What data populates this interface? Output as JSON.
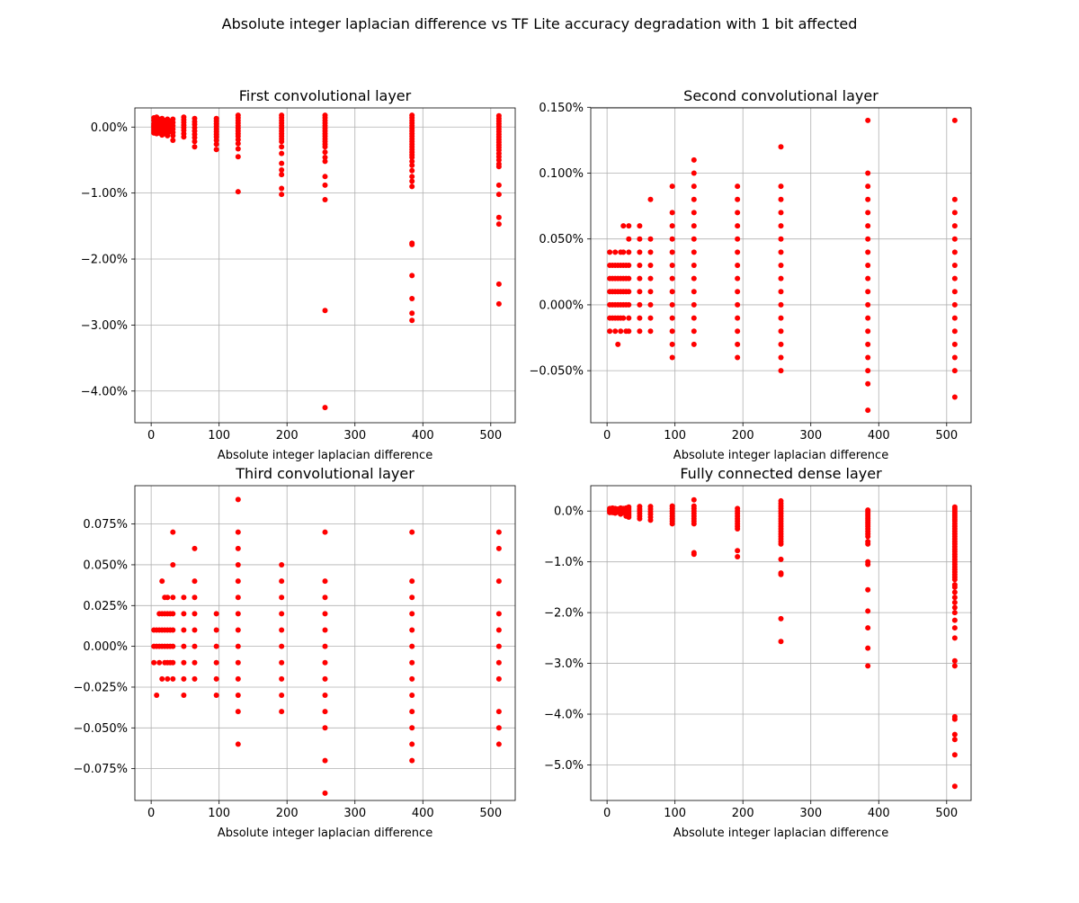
{
  "figure": {
    "suptitle": "Absolute integer laplacian difference vs TF Lite accuracy degradation with 1 bit affected"
  },
  "colors": {
    "marker": "#ff0000",
    "grid": "#b0b0b0",
    "axes": "#000000"
  },
  "chart_data": [
    {
      "type": "scatter",
      "title": "First convolutional layer",
      "xlabel": "Absolute integer laplacian difference",
      "ylabel": "",
      "xlim": [
        -24,
        536
      ],
      "ylim": [
        -4.48,
        0.29
      ],
      "xticks": [
        0,
        100,
        200,
        300,
        400,
        500
      ],
      "xtick_labels": [
        "0",
        "100",
        "200",
        "300",
        "400",
        "500"
      ],
      "yticks": [
        0,
        -1,
        -2,
        -3,
        -4
      ],
      "ytick_labels": [
        "0.00%",
        "−1.00%",
        "−2.00%",
        "−3.00%",
        "−4.00%"
      ],
      "grid": true,
      "marker_color": "#ff0000",
      "series": [
        {
          "x": 4,
          "y": [
            0.14,
            0.1,
            0.05,
            0.02,
            0,
            -0.03,
            -0.06,
            -0.09
          ]
        },
        {
          "x": 8,
          "y": [
            0.15,
            0.1,
            0.05,
            0.01,
            -0.02,
            -0.06,
            -0.1
          ]
        },
        {
          "x": 12,
          "y": [
            0.12,
            0.08,
            0.03,
            -0.01,
            -0.05,
            -0.09
          ]
        },
        {
          "x": 16,
          "y": [
            0.13,
            0.08,
            0.03,
            -0.02,
            -0.06,
            -0.1,
            -0.12
          ]
        },
        {
          "x": 20,
          "y": [
            0.1,
            0.06,
            0.02,
            -0.02,
            -0.06,
            -0.1
          ]
        },
        {
          "x": 24,
          "y": [
            0.12,
            0.07,
            0.03,
            -0.01,
            -0.05,
            -0.09,
            -0.13
          ]
        },
        {
          "x": 28,
          "y": [
            0.09,
            0.05,
            0.01,
            -0.03,
            -0.07
          ]
        },
        {
          "x": 32,
          "y": [
            0.12,
            0.07,
            0.02,
            -0.03,
            -0.08,
            -0.13,
            -0.2
          ]
        },
        {
          "x": 48,
          "y": [
            0.15,
            0.11,
            0.07,
            0.03,
            -0.01,
            -0.05,
            -0.1,
            -0.15
          ]
        },
        {
          "x": 64,
          "y": [
            0.13,
            0.08,
            0.04,
            -0.01,
            -0.06,
            -0.11,
            -0.16,
            -0.22,
            -0.3
          ]
        },
        {
          "x": 96,
          "y": [
            0.13,
            0.09,
            0.05,
            0.01,
            -0.03,
            -0.07,
            -0.11,
            -0.15,
            -0.2,
            -0.26,
            -0.34
          ]
        },
        {
          "x": 128,
          "y": [
            0.18,
            0.14,
            0.1,
            0.06,
            0.02,
            -0.02,
            -0.06,
            -0.1,
            -0.14,
            -0.19,
            -0.25,
            -0.33,
            -0.45,
            -0.98
          ]
        },
        {
          "x": 192,
          "y": [
            0.18,
            0.14,
            0.1,
            0.06,
            0.02,
            -0.02,
            -0.06,
            -0.1,
            -0.14,
            -0.18,
            -0.22,
            -0.3,
            -0.4,
            -0.55,
            -0.65,
            -0.72,
            -0.93,
            -1.02
          ]
        },
        {
          "x": 256,
          "y": [
            0.18,
            0.14,
            0.1,
            0.06,
            0.02,
            -0.02,
            -0.06,
            -0.1,
            -0.14,
            -0.18,
            -0.22,
            -0.26,
            -0.3,
            -0.38,
            -0.46,
            -0.52,
            -0.75,
            -0.88,
            -1.1,
            -2.78,
            -4.25
          ]
        },
        {
          "x": 384,
          "y": [
            0.18,
            0.14,
            0.1,
            0.06,
            0.02,
            -0.02,
            -0.06,
            -0.1,
            -0.14,
            -0.18,
            -0.22,
            -0.26,
            -0.3,
            -0.34,
            -0.38,
            -0.42,
            -0.46,
            -0.52,
            -0.58,
            -0.66,
            -0.75,
            -0.82,
            -0.9,
            -1.76,
            -1.78,
            -2.25,
            -2.6,
            -2.82,
            -2.93
          ]
        },
        {
          "x": 512,
          "y": [
            0.17,
            0.13,
            0.09,
            0.05,
            0.01,
            -0.03,
            -0.07,
            -0.11,
            -0.15,
            -0.19,
            -0.23,
            -0.27,
            -0.31,
            -0.35,
            -0.4,
            -0.45,
            -0.5,
            -0.56,
            -0.6,
            -0.88,
            -1.02,
            -1.37,
            -1.47,
            -2.38,
            -2.68
          ]
        }
      ]
    },
    {
      "type": "scatter",
      "title": "Second convolutional layer",
      "xlabel": "Absolute integer laplacian difference",
      "ylabel": "",
      "xlim": [
        -24,
        536
      ],
      "ylim": [
        -0.0895,
        0.1495
      ],
      "xticks": [
        0,
        100,
        200,
        300,
        400,
        500
      ],
      "xtick_labels": [
        "0",
        "100",
        "200",
        "300",
        "400",
        "500"
      ],
      "yticks": [
        0.15,
        0.1,
        0.05,
        0,
        -0.05
      ],
      "ytick_labels": [
        "0.150%",
        "0.100%",
        "0.050%",
        "0.000%",
        "−0.050%"
      ],
      "grid": true,
      "marker_color": "#ff0000",
      "series": [
        {
          "x": 4,
          "y": [
            0.04,
            0.03,
            0.02,
            0.01,
            0,
            -0.01,
            -0.02
          ]
        },
        {
          "x": 8,
          "y": [
            0.03,
            0.02,
            0.01,
            0,
            -0.01
          ]
        },
        {
          "x": 12,
          "y": [
            0.04,
            0.03,
            0.02,
            0.01,
            0,
            -0.01,
            -0.02
          ]
        },
        {
          "x": 16,
          "y": [
            0.03,
            0.02,
            0.01,
            0,
            -0.01,
            -0.03
          ]
        },
        {
          "x": 20,
          "y": [
            0.04,
            0.03,
            0.02,
            0.01,
            0,
            -0.01,
            -0.02
          ]
        },
        {
          "x": 24,
          "y": [
            0.06,
            0.04,
            0.03,
            0.02,
            0.01,
            0,
            -0.01
          ]
        },
        {
          "x": 28,
          "y": [
            0.03,
            0.02,
            0.01,
            0,
            -0.02
          ]
        },
        {
          "x": 32,
          "y": [
            0.06,
            0.05,
            0.04,
            0.03,
            0.02,
            0.01,
            0,
            -0.01,
            -0.02
          ]
        },
        {
          "x": 48,
          "y": [
            0.06,
            0.05,
            0.04,
            0.03,
            0.02,
            0.01,
            0,
            -0.01,
            -0.02
          ]
        },
        {
          "x": 64,
          "y": [
            0.08,
            0.05,
            0.04,
            0.03,
            0.02,
            0.01,
            0,
            -0.01,
            -0.02
          ]
        },
        {
          "x": 96,
          "y": [
            0.09,
            0.07,
            0.06,
            0.05,
            0.04,
            0.03,
            0.02,
            0.01,
            0,
            -0.01,
            -0.02,
            -0.03,
            -0.04
          ]
        },
        {
          "x": 128,
          "y": [
            0.11,
            0.1,
            0.09,
            0.08,
            0.07,
            0.06,
            0.05,
            0.04,
            0.03,
            0.02,
            0.01,
            0,
            -0.01,
            -0.02,
            -0.03
          ]
        },
        {
          "x": 192,
          "y": [
            0.09,
            0.08,
            0.07,
            0.06,
            0.05,
            0.04,
            0.03,
            0.02,
            0.01,
            0,
            -0.01,
            -0.02,
            -0.03,
            -0.04
          ]
        },
        {
          "x": 256,
          "y": [
            0.12,
            0.09,
            0.08,
            0.07,
            0.06,
            0.05,
            0.04,
            0.03,
            0.02,
            0.01,
            0,
            -0.01,
            -0.02,
            -0.03,
            -0.04,
            -0.05
          ]
        },
        {
          "x": 384,
          "y": [
            0.14,
            0.1,
            0.09,
            0.08,
            0.07,
            0.06,
            0.05,
            0.04,
            0.03,
            0.02,
            0.01,
            0,
            -0.01,
            -0.02,
            -0.03,
            -0.04,
            -0.05,
            -0.06,
            -0.08
          ]
        },
        {
          "x": 512,
          "y": [
            0.14,
            0.08,
            0.07,
            0.06,
            0.05,
            0.04,
            0.03,
            0.02,
            0.01,
            0,
            -0.01,
            -0.02,
            -0.03,
            -0.04,
            -0.05,
            -0.07
          ]
        }
      ]
    },
    {
      "type": "scatter",
      "title": "Third convolutional layer",
      "xlabel": "Absolute integer laplacian difference",
      "ylabel": "",
      "xlim": [
        -24,
        536
      ],
      "ylim": [
        -0.0945,
        0.0985
      ],
      "xticks": [
        0,
        100,
        200,
        300,
        400,
        500
      ],
      "xtick_labels": [
        "0",
        "100",
        "200",
        "300",
        "400",
        "500"
      ],
      "yticks": [
        0.075,
        0.05,
        0.025,
        0,
        -0.025,
        -0.05,
        -0.075
      ],
      "ytick_labels": [
        "0.075%",
        "0.050%",
        "0.025%",
        "0.000%",
        "−0.025%",
        "−0.050%",
        "−0.075%"
      ],
      "grid": true,
      "marker_color": "#ff0000",
      "series": [
        {
          "x": 4,
          "y": [
            0.01,
            0,
            -0.01
          ]
        },
        {
          "x": 8,
          "y": [
            0.01,
            0,
            -0.03
          ]
        },
        {
          "x": 12,
          "y": [
            0.02,
            0.01,
            0,
            -0.01
          ]
        },
        {
          "x": 16,
          "y": [
            0.04,
            0.02,
            0.01,
            0,
            -0.02
          ]
        },
        {
          "x": 20,
          "y": [
            0.03,
            0.02,
            0.01,
            0,
            -0.01
          ]
        },
        {
          "x": 24,
          "y": [
            0.03,
            0.02,
            0.01,
            0,
            -0.01,
            -0.02
          ]
        },
        {
          "x": 28,
          "y": [
            0.02,
            0.01,
            0,
            -0.01
          ]
        },
        {
          "x": 32,
          "y": [
            0.07,
            0.05,
            0.03,
            0.02,
            0.01,
            0,
            -0.01,
            -0.02
          ]
        },
        {
          "x": 48,
          "y": [
            0.03,
            0.02,
            0.01,
            0,
            -0.01,
            -0.02,
            -0.03
          ]
        },
        {
          "x": 64,
          "y": [
            0.06,
            0.04,
            0.03,
            0.02,
            0.01,
            0,
            -0.01,
            -0.02
          ]
        },
        {
          "x": 96,
          "y": [
            0.02,
            0.01,
            0,
            -0.01,
            -0.02,
            -0.03
          ]
        },
        {
          "x": 128,
          "y": [
            0.09,
            0.07,
            0.06,
            0.05,
            0.04,
            0.03,
            0.02,
            0.01,
            0,
            -0.01,
            -0.02,
            -0.03,
            -0.04,
            -0.06
          ]
        },
        {
          "x": 192,
          "y": [
            0.05,
            0.04,
            0.03,
            0.02,
            0.01,
            0,
            -0.01,
            -0.02,
            -0.03,
            -0.04
          ]
        },
        {
          "x": 256,
          "y": [
            0.07,
            0.04,
            0.03,
            0.02,
            0.01,
            0,
            -0.01,
            -0.02,
            -0.03,
            -0.04,
            -0.05,
            -0.07,
            -0.09
          ]
        },
        {
          "x": 384,
          "y": [
            0.07,
            0.04,
            0.03,
            0.02,
            0.01,
            0,
            -0.01,
            -0.02,
            -0.03,
            -0.04,
            -0.05,
            -0.06,
            -0.07
          ]
        },
        {
          "x": 512,
          "y": [
            0.07,
            0.06,
            0.04,
            0.02,
            0.01,
            0,
            -0.01,
            -0.02,
            -0.04,
            -0.05,
            -0.06
          ]
        }
      ]
    },
    {
      "type": "scatter",
      "title": "Fully connected dense layer",
      "xlabel": "Absolute integer laplacian difference",
      "ylabel": "",
      "xlim": [
        -24,
        536
      ],
      "ylim": [
        -5.7,
        0.5
      ],
      "xticks": [
        0,
        100,
        200,
        300,
        400,
        500
      ],
      "xtick_labels": [
        "0",
        "100",
        "200",
        "300",
        "400",
        "500"
      ],
      "yticks": [
        0,
        -1,
        -2,
        -3,
        -4,
        -5
      ],
      "ytick_labels": [
        "0.0%",
        "−1.0%",
        "−2.0%",
        "−3.0%",
        "−4.0%",
        "−5.0%"
      ],
      "grid": true,
      "marker_color": "#ff0000",
      "series": [
        {
          "x": 4,
          "y": [
            0.05,
            0.02,
            0,
            -0.03
          ]
        },
        {
          "x": 8,
          "y": [
            0.06,
            0.03,
            0,
            -0.03
          ]
        },
        {
          "x": 12,
          "y": [
            0.05,
            0.02,
            -0.01,
            -0.04
          ]
        },
        {
          "x": 16,
          "y": [
            0.04,
            0.01,
            -0.02
          ]
        },
        {
          "x": 20,
          "y": [
            0.06,
            0.02,
            -0.02,
            -0.06
          ]
        },
        {
          "x": 24,
          "y": [
            0.05,
            0.01,
            -0.03
          ]
        },
        {
          "x": 28,
          "y": [
            0.06,
            0.02,
            -0.02,
            -0.06,
            -0.1
          ]
        },
        {
          "x": 32,
          "y": [
            0.08,
            0.04,
            0,
            -0.04,
            -0.08,
            -0.12
          ]
        },
        {
          "x": 48,
          "y": [
            0.09,
            0.04,
            0,
            -0.05,
            -0.1,
            -0.15
          ]
        },
        {
          "x": 64,
          "y": [
            0.09,
            0.04,
            -0.01,
            -0.06,
            -0.12,
            -0.18
          ]
        },
        {
          "x": 96,
          "y": [
            0.1,
            0.05,
            0,
            -0.05,
            -0.1,
            -0.15,
            -0.2,
            -0.25
          ]
        },
        {
          "x": 128,
          "y": [
            0.22,
            0.1,
            0.05,
            0,
            -0.05,
            -0.1,
            -0.15,
            -0.2,
            -0.25,
            -0.82,
            -0.85
          ]
        },
        {
          "x": 192,
          "y": [
            0.05,
            0,
            -0.05,
            -0.1,
            -0.15,
            -0.2,
            -0.25,
            -0.3,
            -0.35,
            -0.78,
            -0.9
          ]
        },
        {
          "x": 256,
          "y": [
            0.2,
            0.15,
            0.1,
            0.05,
            0,
            -0.05,
            -0.1,
            -0.15,
            -0.2,
            -0.25,
            -0.3,
            -0.35,
            -0.4,
            -0.45,
            -0.5,
            -0.55,
            -0.6,
            -0.65,
            -0.95,
            -1.22,
            -1.25,
            -2.12,
            -2.57
          ]
        },
        {
          "x": 384,
          "y": [
            0.02,
            -0.02,
            -0.06,
            -0.1,
            -0.14,
            -0.18,
            -0.22,
            -0.26,
            -0.3,
            -0.35,
            -0.4,
            -0.45,
            -0.5,
            -0.6,
            -0.65,
            -1.0,
            -1.05,
            -1.55,
            -1.97,
            -2.3,
            -2.7,
            -3.05
          ]
        },
        {
          "x": 512,
          "y": [
            0.08,
            0.04,
            0,
            -0.04,
            -0.08,
            -0.12,
            -0.16,
            -0.2,
            -0.25,
            -0.3,
            -0.35,
            -0.4,
            -0.45,
            -0.5,
            -0.55,
            -0.6,
            -0.65,
            -0.7,
            -0.75,
            -0.8,
            -0.85,
            -0.9,
            -0.95,
            -1.0,
            -1.05,
            -1.1,
            -1.15,
            -1.2,
            -1.25,
            -1.3,
            -1.35,
            -1.45,
            -1.5,
            -1.6,
            -1.7,
            -1.8,
            -1.9,
            -2.0,
            -2.15,
            -2.3,
            -2.5,
            -2.95,
            -3.05,
            -4.05,
            -4.1,
            -4.4,
            -4.5,
            -4.8,
            -5.42
          ]
        }
      ]
    }
  ]
}
